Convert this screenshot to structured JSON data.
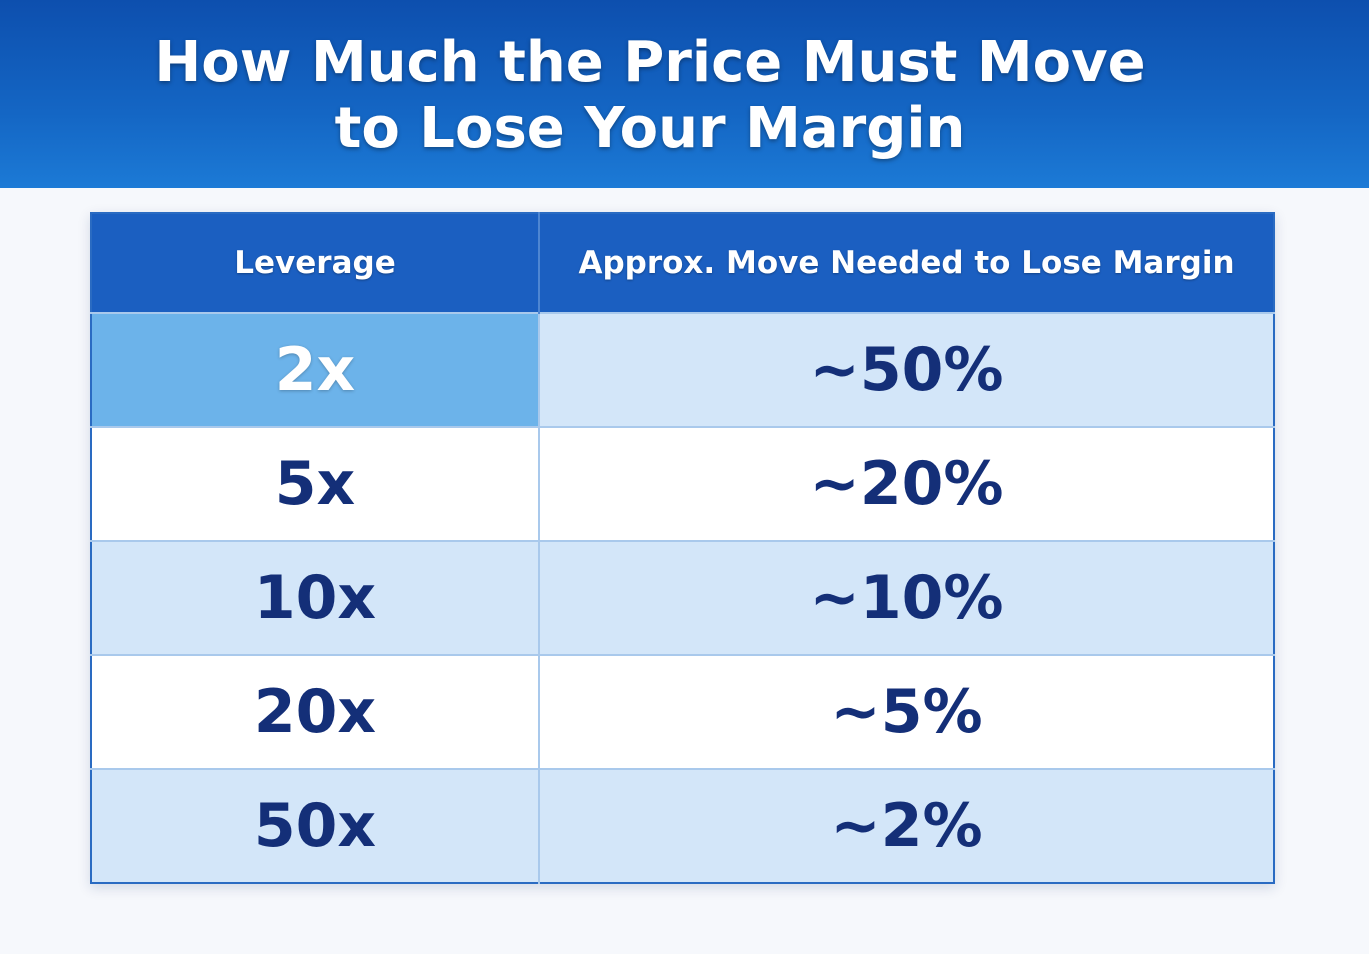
{
  "header": {
    "title_lines": [
      "How Much the Price Must Move",
      "to Lose Your Margin"
    ]
  },
  "table": {
    "columns": [
      "Leverage",
      "Approx. Move Needed to Lose Margin"
    ],
    "rows": [
      [
        "2x",
        "~50%"
      ],
      [
        "5x",
        "~20%"
      ],
      [
        "10x",
        "~10%"
      ],
      [
        "20x",
        "~5%"
      ],
      [
        "50x",
        "~2%"
      ]
    ]
  }
}
